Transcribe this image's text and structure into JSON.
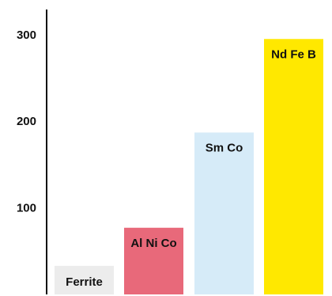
{
  "chart_data": {
    "type": "bar",
    "title": "",
    "xlabel": "",
    "ylabel": "",
    "ylim": [
      0,
      330
    ],
    "yticks": [
      100,
      200,
      300
    ],
    "grid": false,
    "categories": [
      "Ferrite",
      "Al Ni Co",
      "Sm Co",
      "Nd Fe B"
    ],
    "values": [
      33,
      77,
      187,
      295
    ],
    "colors": [
      "#ececec",
      "#e8697a",
      "#d6ebf8",
      "#ffe800"
    ]
  }
}
